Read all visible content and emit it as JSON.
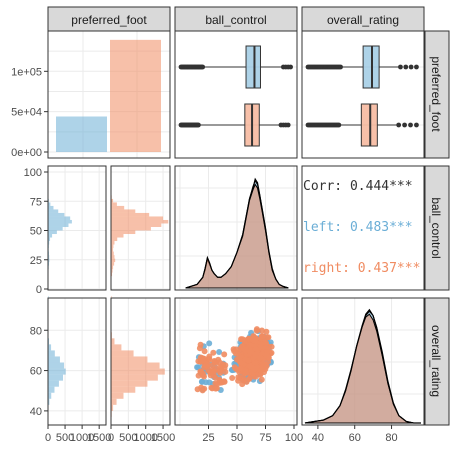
{
  "chart_data": {
    "type": "pairs",
    "variables": [
      "preferred_foot",
      "ball_control",
      "overall_rating"
    ],
    "groups": [
      {
        "name": "left",
        "color": "#6BAED6"
      },
      {
        "name": "right",
        "color": "#F08C62"
      }
    ],
    "foot_counts": {
      "ylim": [
        0,
        145000
      ],
      "ticks": [
        "0e+00",
        "5e+04",
        "1e+05"
      ],
      "tick_values": [
        0,
        50000,
        100000
      ],
      "values": [
        44000,
        139000
      ]
    },
    "boxplots": {
      "ball_control": {
        "xlim": [
          5,
          98
        ],
        "left": {
          "min": 23,
          "q1": 59,
          "median": 66,
          "q3": 71,
          "max": 90,
          "outlier_range": [
            5,
            23
          ],
          "outlier_high": [
            90,
            96
          ]
        },
        "right": {
          "min": 20,
          "q1": 58,
          "median": 64,
          "q3": 70,
          "max": 88,
          "outlier_range": [
            5,
            20
          ],
          "outlier_high": [
            88,
            94
          ]
        }
      },
      "overall_rating": {
        "xlim": [
          33,
          96
        ],
        "left": {
          "min": 52,
          "q1": 64,
          "median": 69,
          "q3": 73,
          "max": 85,
          "outlier_range": [
            33,
            52
          ],
          "outlier_high": [
            85,
            94
          ]
        },
        "right": {
          "min": 51,
          "q1": 63,
          "median": 68,
          "q3": 72,
          "max": 84,
          "outlier_range": [
            33,
            51
          ],
          "outlier_high": [
            84,
            94
          ]
        }
      }
    },
    "ball_control_axis": {
      "ticks": [
        "0",
        "25",
        "50",
        "75",
        "100"
      ],
      "tick_values": [
        0,
        25,
        50,
        75,
        100
      ],
      "range": [
        0,
        100
      ]
    },
    "overall_rating_axis": {
      "ticks": [
        "40",
        "60",
        "80"
      ],
      "tick_values": [
        40,
        60,
        80
      ],
      "range": [
        33,
        96
      ]
    },
    "hist_count_axis": {
      "ticks": [
        "0",
        "500",
        "1000",
        "1500"
      ],
      "tick_values": [
        0,
        500,
        1000,
        1500
      ],
      "left_range": [
        0,
        1700
      ],
      "right_range": [
        0,
        1700
      ]
    },
    "histograms": {
      "ball_control": {
        "bin_start": 8,
        "bin_width": 3,
        "left": [
          5,
          10,
          15,
          20,
          30,
          40,
          35,
          28,
          20,
          25,
          35,
          60,
          120,
          260,
          430,
          600,
          700,
          650,
          480,
          300,
          160,
          70,
          25,
          8,
          3,
          1,
          1,
          1,
          1,
          1
        ],
        "right": [
          15,
          30,
          45,
          60,
          90,
          120,
          100,
          80,
          60,
          70,
          100,
          180,
          360,
          700,
          1150,
          1450,
          1650,
          1500,
          1100,
          700,
          380,
          170,
          60,
          20,
          8,
          3,
          2,
          1,
          1,
          1
        ]
      },
      "overall_rating": {
        "bin_start": 34,
        "bin_width": 3,
        "left": [
          2,
          5,
          15,
          40,
          95,
          190,
          320,
          440,
          520,
          470,
          350,
          200,
          90,
          30,
          8,
          3,
          1,
          1,
          1,
          1,
          1
        ],
        "right": [
          8,
          20,
          60,
          160,
          360,
          700,
          1050,
          1350,
          1550,
          1400,
          1050,
          650,
          300,
          100,
          25,
          8,
          3,
          2,
          1,
          1,
          1
        ]
      }
    },
    "density_ball_control": {
      "x": [
        5,
        10,
        15,
        20,
        22,
        24,
        26,
        28,
        30,
        33,
        36,
        40,
        45,
        50,
        55,
        58,
        61,
        64,
        66,
        68,
        70,
        72,
        75,
        78,
        81,
        84,
        87,
        90,
        95
      ],
      "left": [
        0.0,
        0.001,
        0.002,
        0.006,
        0.01,
        0.016,
        0.013,
        0.01,
        0.008,
        0.006,
        0.006,
        0.008,
        0.012,
        0.02,
        0.03,
        0.04,
        0.05,
        0.057,
        0.06,
        0.058,
        0.052,
        0.045,
        0.034,
        0.021,
        0.011,
        0.005,
        0.002,
        0.001,
        0.0
      ],
      "right": [
        0.0,
        0.001,
        0.002,
        0.006,
        0.011,
        0.017,
        0.014,
        0.01,
        0.008,
        0.006,
        0.006,
        0.008,
        0.012,
        0.02,
        0.029,
        0.039,
        0.049,
        0.055,
        0.058,
        0.056,
        0.05,
        0.043,
        0.032,
        0.02,
        0.01,
        0.005,
        0.002,
        0.001,
        0.0
      ],
      "all": [
        0.0,
        0.001,
        0.002,
        0.006,
        0.011,
        0.017,
        0.014,
        0.01,
        0.008,
        0.006,
        0.006,
        0.008,
        0.012,
        0.02,
        0.03,
        0.04,
        0.05,
        0.056,
        0.061,
        0.059,
        0.052,
        0.044,
        0.033,
        0.02,
        0.01,
        0.005,
        0.002,
        0.001,
        0.0
      ]
    },
    "density_overall_rating": {
      "x": [
        33,
        38,
        43,
        48,
        52,
        55,
        58,
        61,
        64,
        66,
        68,
        70,
        72,
        75,
        78,
        81,
        84,
        88,
        92,
        96
      ],
      "left": [
        0.0,
        0.001,
        0.002,
        0.005,
        0.012,
        0.022,
        0.036,
        0.052,
        0.066,
        0.074,
        0.077,
        0.074,
        0.066,
        0.049,
        0.029,
        0.014,
        0.005,
        0.001,
        0.0,
        0.0
      ],
      "right": [
        0.0,
        0.001,
        0.002,
        0.005,
        0.012,
        0.023,
        0.037,
        0.053,
        0.066,
        0.073,
        0.075,
        0.071,
        0.063,
        0.046,
        0.027,
        0.013,
        0.005,
        0.001,
        0.0,
        0.0
      ],
      "all": [
        0.0,
        0.001,
        0.002,
        0.005,
        0.012,
        0.022,
        0.036,
        0.053,
        0.067,
        0.075,
        0.078,
        0.074,
        0.065,
        0.047,
        0.028,
        0.013,
        0.005,
        0.001,
        0.0,
        0.0
      ]
    },
    "correlation": {
      "overall": {
        "label": "Corr: 0.444***"
      },
      "left": {
        "label": "left: 0.483***"
      },
      "right": {
        "label": "right: 0.437***"
      }
    }
  }
}
